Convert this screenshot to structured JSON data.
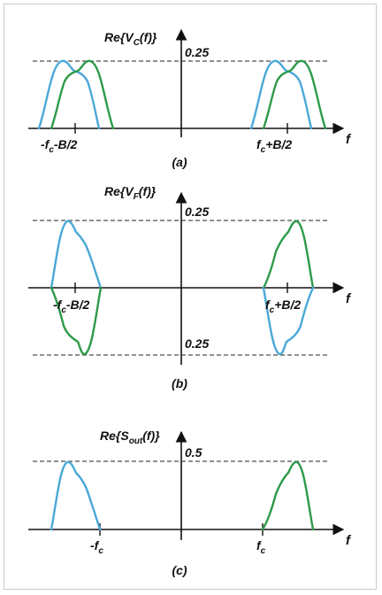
{
  "colors": {
    "blue_trace": "#4aa8d8",
    "green_trace": "#2e9a4a",
    "axis": "#111111"
  },
  "panel_a": {
    "ylabel_main": "Re{V",
    "ylabel_sub": "C",
    "ylabel_tail": "(f)}",
    "level": "0.25",
    "tick_left_pre": "-f",
    "tick_left_sub": "c",
    "tick_left_post": "-B/2",
    "tick_right_pre": "f",
    "tick_right_sub": "c",
    "tick_right_post": "+B/2",
    "xlabel": "f",
    "caption": "(a)"
  },
  "panel_b": {
    "ylabel_main": "Re{V",
    "ylabel_sub": "F",
    "ylabel_tail": "(f)}",
    "level_top": "0.25",
    "level_bottom": "0.25",
    "tick_left_pre": "-f",
    "tick_left_sub": "c",
    "tick_left_post": "-B/2",
    "tick_right_pre": "f",
    "tick_right_sub": "c",
    "tick_right_post": "+B/2",
    "xlabel": "f",
    "caption": "(b)"
  },
  "panel_c": {
    "ylabel_main": "Re{S",
    "ylabel_sub": "out",
    "ylabel_tail": "(f)}",
    "level": "0.5",
    "tick_left_pre": "-f",
    "tick_left_sub": "c",
    "tick_right_pre": "f",
    "tick_right_sub": "c",
    "xlabel": "f",
    "caption": "(c)"
  }
}
